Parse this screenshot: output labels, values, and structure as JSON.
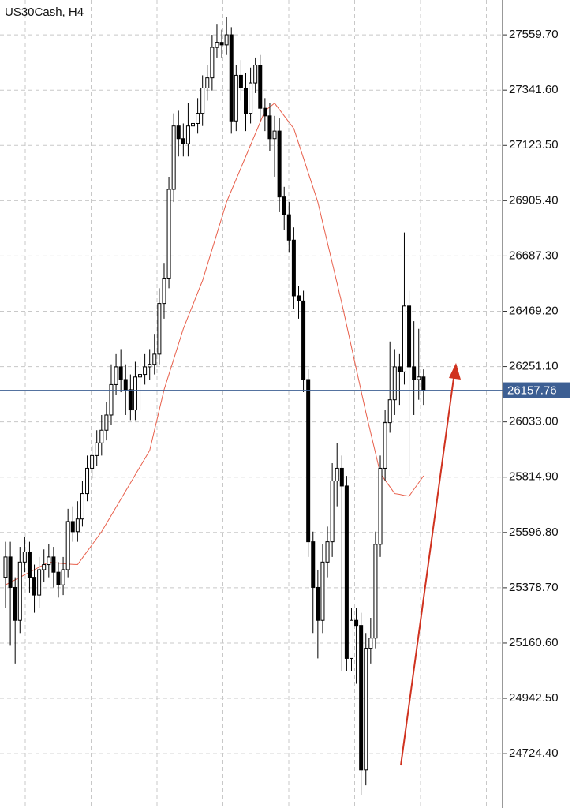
{
  "chart_data": {
    "type": "candlestick",
    "title": "US30Cash, H4",
    "ylim": [
      24510,
      27697
    ],
    "yticks": [
      {
        "value": 27559.7,
        "label": "27559.70"
      },
      {
        "value": 27341.6,
        "label": "27341.60"
      },
      {
        "value": 27123.5,
        "label": "27123.50"
      },
      {
        "value": 26905.4,
        "label": "26905.40"
      },
      {
        "value": 26687.3,
        "label": "26687.30"
      },
      {
        "value": 26469.2,
        "label": "26469.20"
      },
      {
        "value": 26251.1,
        "label": "26251.10"
      },
      {
        "value": 26033,
        "label": "26033.00"
      },
      {
        "value": 25814.9,
        "label": "25814.90"
      },
      {
        "value": 25596.8,
        "label": "25596.80"
      },
      {
        "value": 25378.7,
        "label": "25378.70"
      },
      {
        "value": 25160.6,
        "label": "25160.60"
      },
      {
        "value": 24942.5,
        "label": "24942.50"
      },
      {
        "value": 24724.4,
        "label": "24724.40"
      }
    ],
    "grid": true,
    "open": [
      25420,
      25500,
      25380,
      25250,
      25480,
      25520,
      25420,
      25350,
      25450,
      25470,
      25500,
      25440,
      25390,
      25450,
      25640,
      25600,
      25650,
      25750,
      25850,
      25900,
      25950,
      26000,
      26060,
      26180,
      26250,
      26200,
      26160,
      26080,
      26210,
      26220,
      26250,
      26260,
      26300,
      26500,
      26600,
      26950,
      27200,
      27150,
      27130,
      27200,
      27210,
      27250,
      27350,
      27390,
      27510,
      27530,
      27520,
      27560,
      27220,
      27400,
      27350,
      27250,
      27370,
      27440,
      27270,
      27240,
      27150,
      27180,
      26920,
      26850,
      26750,
      26530,
      26510,
      26200,
      25560,
      25380,
      25250,
      25480,
      25560,
      25800,
      25850,
      25780,
      25100,
      25250,
      25230,
      24660,
      25140,
      25180,
      25550,
      25850,
      26030,
      26120,
      26250,
      26230,
      26490,
      26250,
      26200,
      26210
    ],
    "high": [
      25560,
      25560,
      25420,
      25540,
      25580,
      25560,
      25470,
      25500,
      25530,
      25550,
      25540,
      25480,
      25500,
      25690,
      25700,
      25720,
      25800,
      25900,
      25940,
      26000,
      26060,
      26110,
      26260,
      26300,
      26320,
      26260,
      26220,
      26270,
      26290,
      26300,
      26320,
      26380,
      26560,
      26660,
      27000,
      27250,
      27260,
      27210,
      27290,
      27260,
      27310,
      27400,
      27440,
      27560,
      27600,
      27580,
      27630,
      27590,
      27440,
      27460,
      27410,
      27430,
      27470,
      27480,
      27310,
      27290,
      27240,
      27230,
      26960,
      26900,
      26800,
      26570,
      26550,
      26240,
      25600,
      25450,
      25550,
      25620,
      25870,
      25950,
      25900,
      25820,
      25300,
      25300,
      25280,
      25200,
      25260,
      25600,
      25900,
      26080,
      26350,
      26320,
      26300,
      26780,
      26550,
      26430,
      26400,
      26240
    ],
    "low": [
      25300,
      25150,
      25080,
      25200,
      25440,
      25360,
      25280,
      25300,
      25400,
      25420,
      25380,
      25340,
      25350,
      25420,
      25560,
      25560,
      25620,
      25720,
      25810,
      25860,
      25900,
      25960,
      26020,
      26140,
      26150,
      26060,
      26040,
      26040,
      26080,
      26180,
      26200,
      26220,
      26260,
      26440,
      26560,
      26900,
      27080,
      27080,
      27080,
      27130,
      27170,
      27200,
      27300,
      27340,
      27470,
      27470,
      27480,
      27170,
      27180,
      27300,
      27180,
      27210,
      27330,
      27220,
      27180,
      27100,
      27000,
      26860,
      26790,
      26700,
      26480,
      26440,
      26150,
      25500,
      25200,
      25100,
      25200,
      25420,
      25500,
      25700,
      25050,
      25050,
      25050,
      25000,
      24560,
      24600,
      25080,
      25140,
      25500,
      25800,
      25990,
      26060,
      26100,
      26180,
      25820,
      26060,
      26120,
      26100
    ],
    "close": [
      25500,
      25380,
      25250,
      25480,
      25520,
      25420,
      25350,
      25450,
      25470,
      25500,
      25440,
      25390,
      25450,
      25640,
      25600,
      25650,
      25750,
      25850,
      25900,
      25950,
      26000,
      26060,
      26180,
      26250,
      26200,
      26160,
      26080,
      26210,
      26220,
      26250,
      26260,
      26300,
      26500,
      26600,
      26950,
      27200,
      27150,
      27130,
      27200,
      27210,
      27250,
      27350,
      27390,
      27510,
      27530,
      27520,
      27560,
      27220,
      27400,
      27350,
      27250,
      27370,
      27440,
      27270,
      27240,
      27150,
      27180,
      26920,
      26850,
      26750,
      26530,
      26510,
      26200,
      25560,
      25380,
      25250,
      25480,
      25560,
      25800,
      25850,
      25780,
      25100,
      25250,
      25230,
      24660,
      25140,
      25180,
      25550,
      25850,
      26030,
      26120,
      26250,
      26230,
      26490,
      26250,
      26200,
      26210,
      26157.76
    ],
    "ma": {
      "color": "#e8604c",
      "values": [
        25390,
        25400,
        25410,
        25420,
        25430,
        25440,
        25450,
        25460,
        25470,
        25480,
        25478,
        25476,
        25474,
        25472,
        25471,
        25470,
        25496,
        25522,
        25548,
        25574,
        25600,
        25632,
        25664,
        25696,
        25728,
        25760,
        25792,
        25824,
        25856,
        25888,
        25920,
        26000,
        26080,
        26160,
        26220,
        26280,
        26340,
        26400,
        26448,
        26495,
        26543,
        26590,
        26652,
        26714,
        26776,
        26838,
        26900,
        26945,
        26990,
        27035,
        27080,
        27125,
        27170,
        27215,
        27260,
        27275,
        27290,
        27265,
        27240,
        27215,
        27190,
        27132,
        27074,
        27016,
        26958,
        26900,
        26820,
        26740,
        26660,
        26580,
        26500,
        26414,
        26328,
        26242,
        26156,
        26070,
        25990,
        25910,
        25830,
        25803,
        25777,
        25750,
        25747,
        25743,
        25740,
        25767,
        25793,
        25820
      ]
    },
    "current_price": {
      "value": 26157.76,
      "color": "#3d5f93"
    }
  }
}
